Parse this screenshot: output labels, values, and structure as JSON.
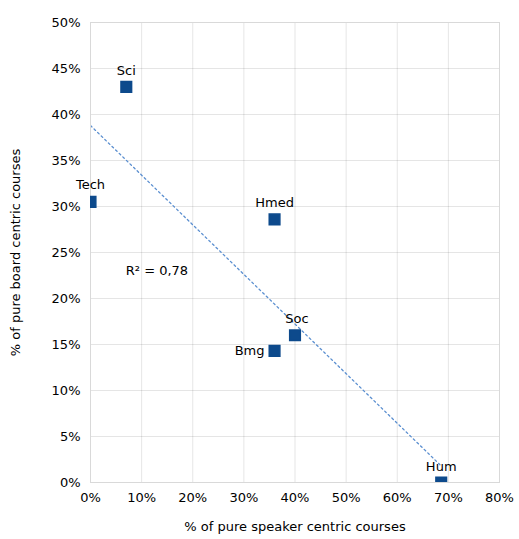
{
  "chart_data": {
    "type": "scatter",
    "x_label": "% of pure speaker centric courses",
    "y_label": "% of pure board centric courses",
    "labels": [
      "Sci",
      "Tech",
      "Hmed",
      "Soc",
      "Bmg",
      "Hum"
    ],
    "x": [
      7,
      0,
      36,
      40,
      36,
      68.6
    ],
    "values": [
      43,
      30.5,
      28.6,
      16,
      14.3,
      0
    ],
    "color": "#0d4a8c",
    "marker": "square",
    "trendline": {
      "x": [
        0,
        68.6
      ],
      "values": [
        38.8,
        1.8
      ],
      "color": "#5b8fd0",
      "line_style": "dotted"
    },
    "annotations": [
      {
        "text": "R² = 0,78",
        "x": 13,
        "y": 23
      }
    ],
    "xlim": [
      0,
      80
    ],
    "xticks": [
      {
        "value": 0,
        "label": "0%"
      },
      {
        "value": 10,
        "label": "10%"
      },
      {
        "value": 20,
        "label": "20%"
      },
      {
        "value": 30,
        "label": "30%"
      },
      {
        "value": 40,
        "label": "40%"
      },
      {
        "value": 50,
        "label": "50%"
      },
      {
        "value": 60,
        "label": "60%"
      },
      {
        "value": 70,
        "label": "70%"
      },
      {
        "value": 80,
        "label": "80%"
      }
    ],
    "ylim": [
      0,
      50
    ],
    "yticks": [
      {
        "value": 0,
        "label": "0%"
      },
      {
        "value": 5,
        "label": "5%"
      },
      {
        "value": 10,
        "label": "10%"
      },
      {
        "value": 15,
        "label": "15%"
      },
      {
        "value": 20,
        "label": "20%"
      },
      {
        "value": 25,
        "label": "25%"
      },
      {
        "value": 30,
        "label": "30%"
      },
      {
        "value": 35,
        "label": "35%"
      },
      {
        "value": 40,
        "label": "40%"
      },
      {
        "value": 45,
        "label": "45%"
      },
      {
        "value": 50,
        "label": "50%"
      }
    ],
    "grid": true
  }
}
